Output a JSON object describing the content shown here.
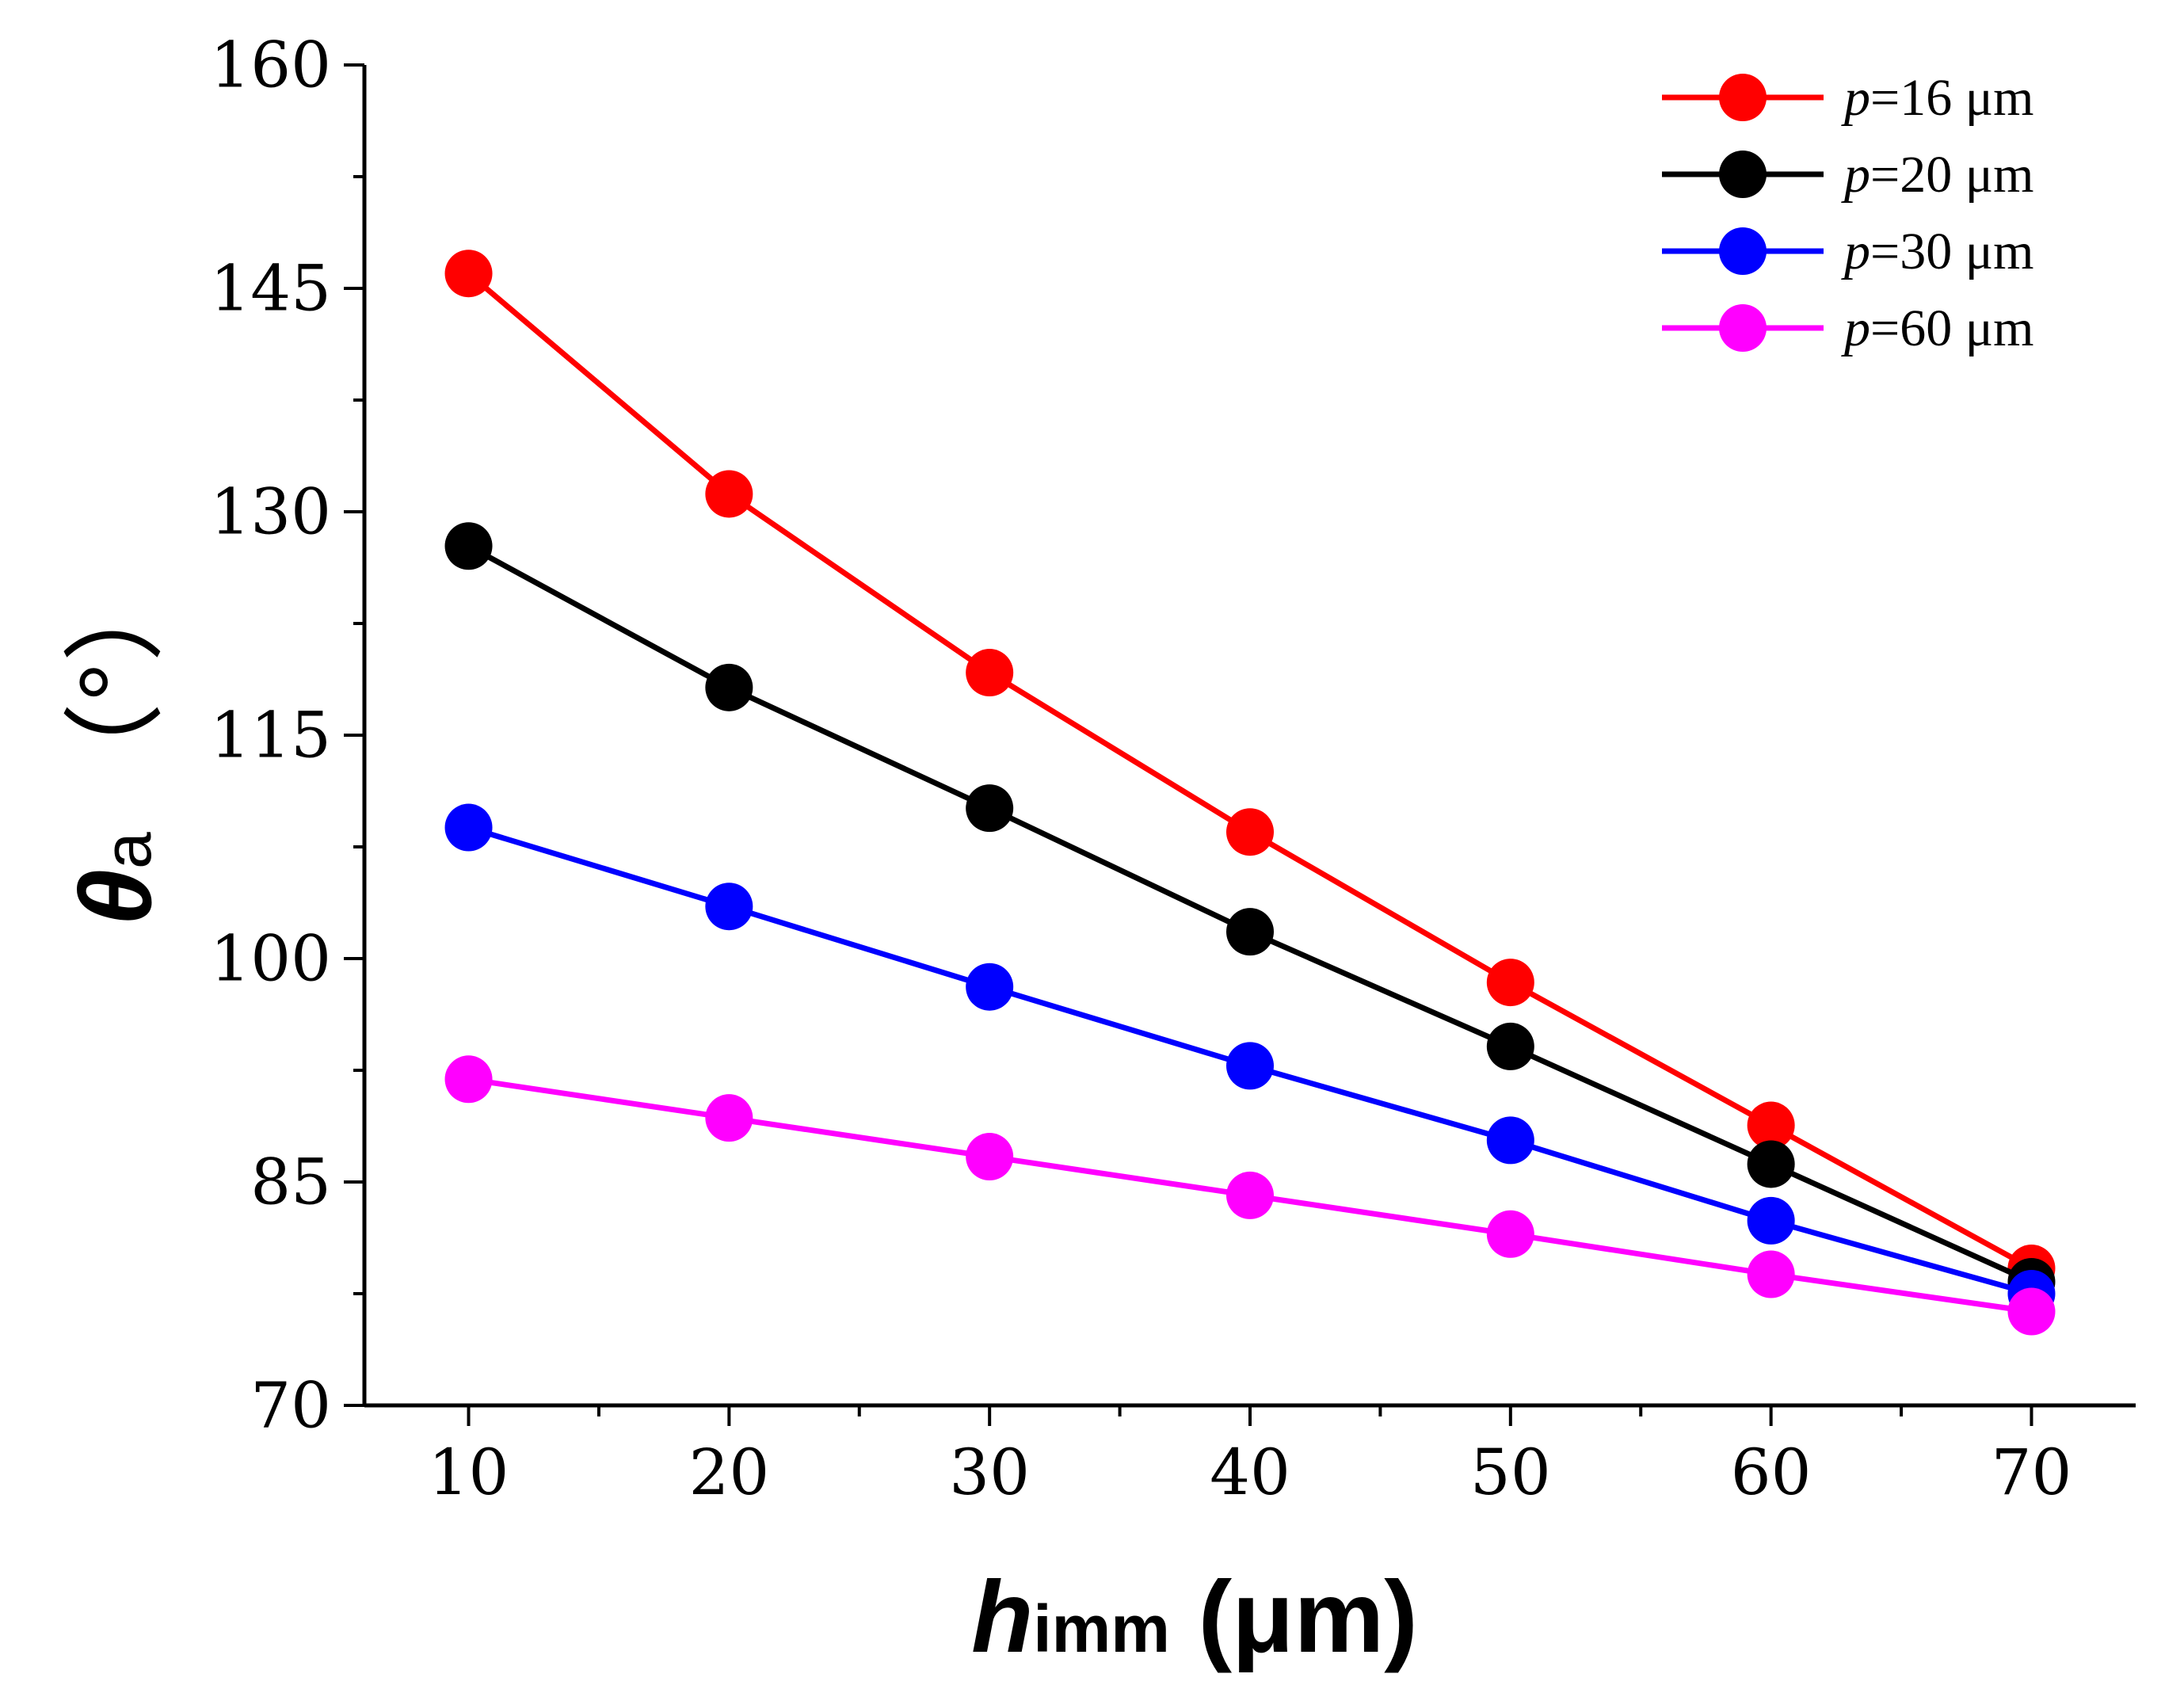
{
  "chart_data": {
    "type": "line",
    "x": [
      10,
      20,
      30,
      40,
      50,
      60,
      70
    ],
    "xlim": [
      6,
      74
    ],
    "ylim": [
      70,
      160
    ],
    "xticks": [
      10,
      20,
      30,
      40,
      50,
      60,
      70
    ],
    "yticks": [
      70,
      85,
      100,
      115,
      130,
      145,
      160
    ],
    "xlabel": {
      "symbol": "h",
      "subscript": "imm",
      "unit": " (μm)"
    },
    "ylabel": {
      "symbol": "θ",
      "subscript": "a",
      "unit": "（°）"
    },
    "legend_position": "top-right",
    "series": [
      {
        "name": "p=16 μm",
        "legend_italic": "p",
        "legend_rest": "=16 μm",
        "color": "#ff0000",
        "values": [
          146,
          131.2,
          119.2,
          108.5,
          98.4,
          88.8,
          79.2
        ]
      },
      {
        "name": "p=20 μm",
        "legend_italic": "p",
        "legend_rest": "=20 μm",
        "color": "#000000",
        "values": [
          127.7,
          118.2,
          110.1,
          101.8,
          94.1,
          86.2,
          78.3
        ]
      },
      {
        "name": "p=30 μm",
        "legend_italic": "p",
        "legend_rest": "=30 μm",
        "color": "#0000ff",
        "values": [
          108.8,
          103.5,
          98.1,
          92.8,
          87.8,
          82.4,
          77.5
        ]
      },
      {
        "name": "p=60 μm",
        "legend_italic": "p",
        "legend_rest": "=60 μm",
        "color": "#ff00ff",
        "values": [
          91.9,
          89.3,
          86.7,
          84.1,
          81.5,
          78.8,
          76.3
        ]
      }
    ]
  }
}
